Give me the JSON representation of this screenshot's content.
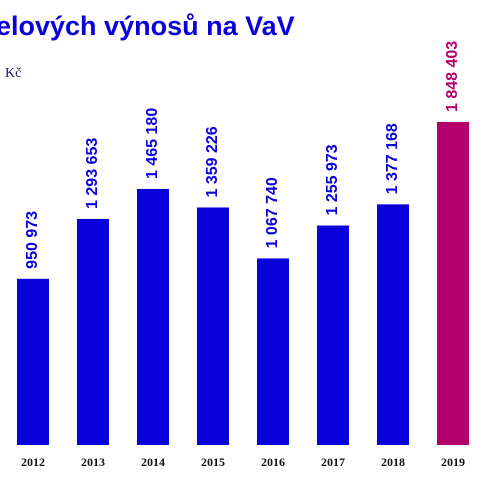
{
  "chart_data": {
    "type": "bar",
    "title": "elových výnosů na VaV",
    "subtitle": "Kč",
    "categories": [
      "2012",
      "2013",
      "2014",
      "2015",
      "2016",
      "2017",
      "2018",
      "2019"
    ],
    "values": [
      950973,
      1293653,
      1465180,
      1359226,
      1067740,
      1255973,
      1377168,
      1848403
    ],
    "value_labels": [
      "950 973",
      "1 293 653",
      "1 465 180",
      "1 359 226",
      "1 067 740",
      "1 255 973",
      "1 377 168",
      "1 848 403"
    ],
    "colors": [
      "#0a00dc",
      "#0a00dc",
      "#0a00dc",
      "#0a00dc",
      "#0a00dc",
      "#0a00dc",
      "#0a00dc",
      "#b4006c"
    ]
  }
}
